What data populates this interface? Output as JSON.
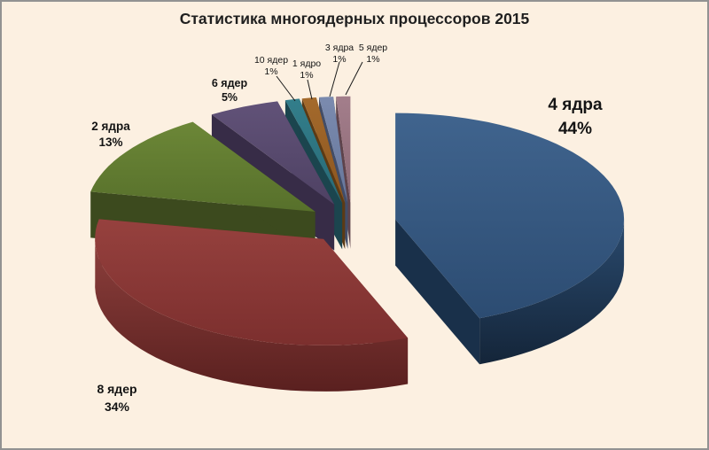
{
  "page": {
    "background": "#FCF0E1",
    "border_color": "#929292"
  },
  "chart_data": {
    "type": "pie",
    "title": "Статистика многоядерных процессоров 2015",
    "unit": "%",
    "start_angle": 0,
    "direction": "clockwise",
    "legend": "none",
    "style": "3d-exploded",
    "categories": [
      "4 ядра",
      "8 ядер",
      "2 ядра",
      "6 ядер",
      "10 ядер",
      "1 ядро",
      "3 ядра",
      "5 ядер"
    ],
    "values": [
      44,
      34,
      13,
      5,
      1,
      1,
      1,
      1
    ],
    "slices": [
      {
        "label": "4 ядра",
        "pct": "44%",
        "value": 44,
        "color": "#35597F",
        "colors": {
          "top_light": "#40648E",
          "top_dark": "#2C4C72",
          "side": "#19304A",
          "rim_light": "#2A4A6E",
          "rim_dark": "#142539"
        }
      },
      {
        "label": "8 ядер",
        "pct": "34%",
        "value": 34,
        "color": "#883634",
        "colors": {
          "top_light": "#96413E",
          "top_dark": "#7C2F2E",
          "side": "#6E2A28",
          "rim_light": "#8E403D",
          "rim_dark": "#5A201F"
        }
      },
      {
        "label": "2 ядра",
        "pct": "13%",
        "value": 13,
        "color": "#627C31",
        "colors": {
          "top_light": "#6C8737",
          "top_dark": "#57702B",
          "side": "#3C4A1E",
          "rim_light": "#4E6226",
          "rim_dark": "#303C17"
        }
      },
      {
        "label": "6 ядер",
        "pct": "5%",
        "value": 5,
        "color": "#584A6D",
        "colors": {
          "top_light": "#615278",
          "top_dark": "#4E4163",
          "side": "#372C47",
          "rim_light": "#443757",
          "rim_dark": "#2B2238"
        }
      },
      {
        "label": "10 ядер",
        "pct": "1%",
        "value": 1,
        "color": "#2E7481",
        "colors": {
          "top_light": "#337E8B",
          "top_dark": "#286A76",
          "side": "#1B454E",
          "rim_light": "#266673",
          "rim_dark": "#143840"
        }
      },
      {
        "label": "1 ядро",
        "pct": "1%",
        "value": 1,
        "color": "#9A6226",
        "colors": {
          "top_light": "#A46A2C",
          "top_dark": "#8B551F",
          "side": "#5C3A14",
          "rim_light": "#7A4C1B",
          "rim_dark": "#4A2E0F"
        }
      },
      {
        "label": "3 ядра",
        "pct": "1%",
        "value": 1,
        "color": "#7081A6",
        "colors": {
          "top_light": "#7B8BAF",
          "top_dark": "#66769B",
          "side": "#424D68",
          "rim_light": "#5A688C",
          "rim_dark": "#38425A"
        }
      },
      {
        "label": "5 ядер",
        "pct": "1%",
        "value": 1,
        "color": "#9A7380",
        "colors": {
          "top_light": "#A37E8B",
          "top_dark": "#8C6875",
          "side": "#5E434C",
          "rim_light": "#7B5763",
          "rim_dark": "#4E3640"
        }
      }
    ]
  }
}
